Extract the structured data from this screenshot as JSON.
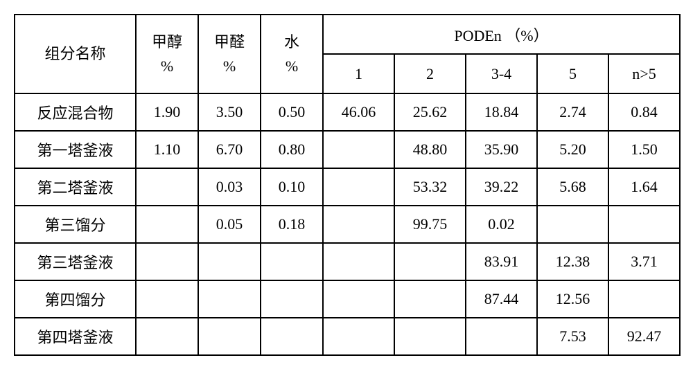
{
  "table": {
    "type": "table",
    "background_color": "#ffffff",
    "border_color": "#000000",
    "font_family": "SimSun",
    "font_size_pt": 16,
    "header": {
      "name": "组分名称",
      "cols_stack": [
        {
          "label_top": "甲醇",
          "label_bot": "%"
        },
        {
          "label_top": "甲醛",
          "label_bot": "%"
        },
        {
          "label_top": "水",
          "label_bot": "%"
        }
      ],
      "group_label": "PODEn    （%）",
      "sub_labels": [
        "1",
        "2",
        "3-4",
        "5",
        "n>5"
      ]
    },
    "rows": [
      {
        "name": "反应混合物",
        "c": [
          "1.90",
          "3.50",
          "0.50",
          "46.06",
          "25.62",
          "18.84",
          "2.74",
          "0.84"
        ]
      },
      {
        "name": "第一塔釜液",
        "c": [
          "1.10",
          "6.70",
          "0.80",
          "",
          "48.80",
          "35.90",
          "5.20",
          "1.50"
        ]
      },
      {
        "name": "第二塔釜液",
        "c": [
          "",
          "0.03",
          "0.10",
          "",
          "53.32",
          "39.22",
          "5.68",
          "1.64"
        ]
      },
      {
        "name": "第三馏分",
        "c": [
          "",
          "0.05",
          "0.18",
          "",
          "99.75",
          "0.02",
          "",
          ""
        ]
      },
      {
        "name": "第三塔釜液",
        "c": [
          "",
          "",
          "",
          "",
          "",
          "83.91",
          "12.38",
          "3.71"
        ]
      },
      {
        "name": "第四馏分",
        "c": [
          "",
          "",
          "",
          "",
          "",
          "87.44",
          "12.56",
          ""
        ]
      },
      {
        "name": "第四塔釜液",
        "c": [
          "",
          "",
          "",
          "",
          "",
          "",
          "7.53",
          "92.47"
        ]
      }
    ]
  }
}
